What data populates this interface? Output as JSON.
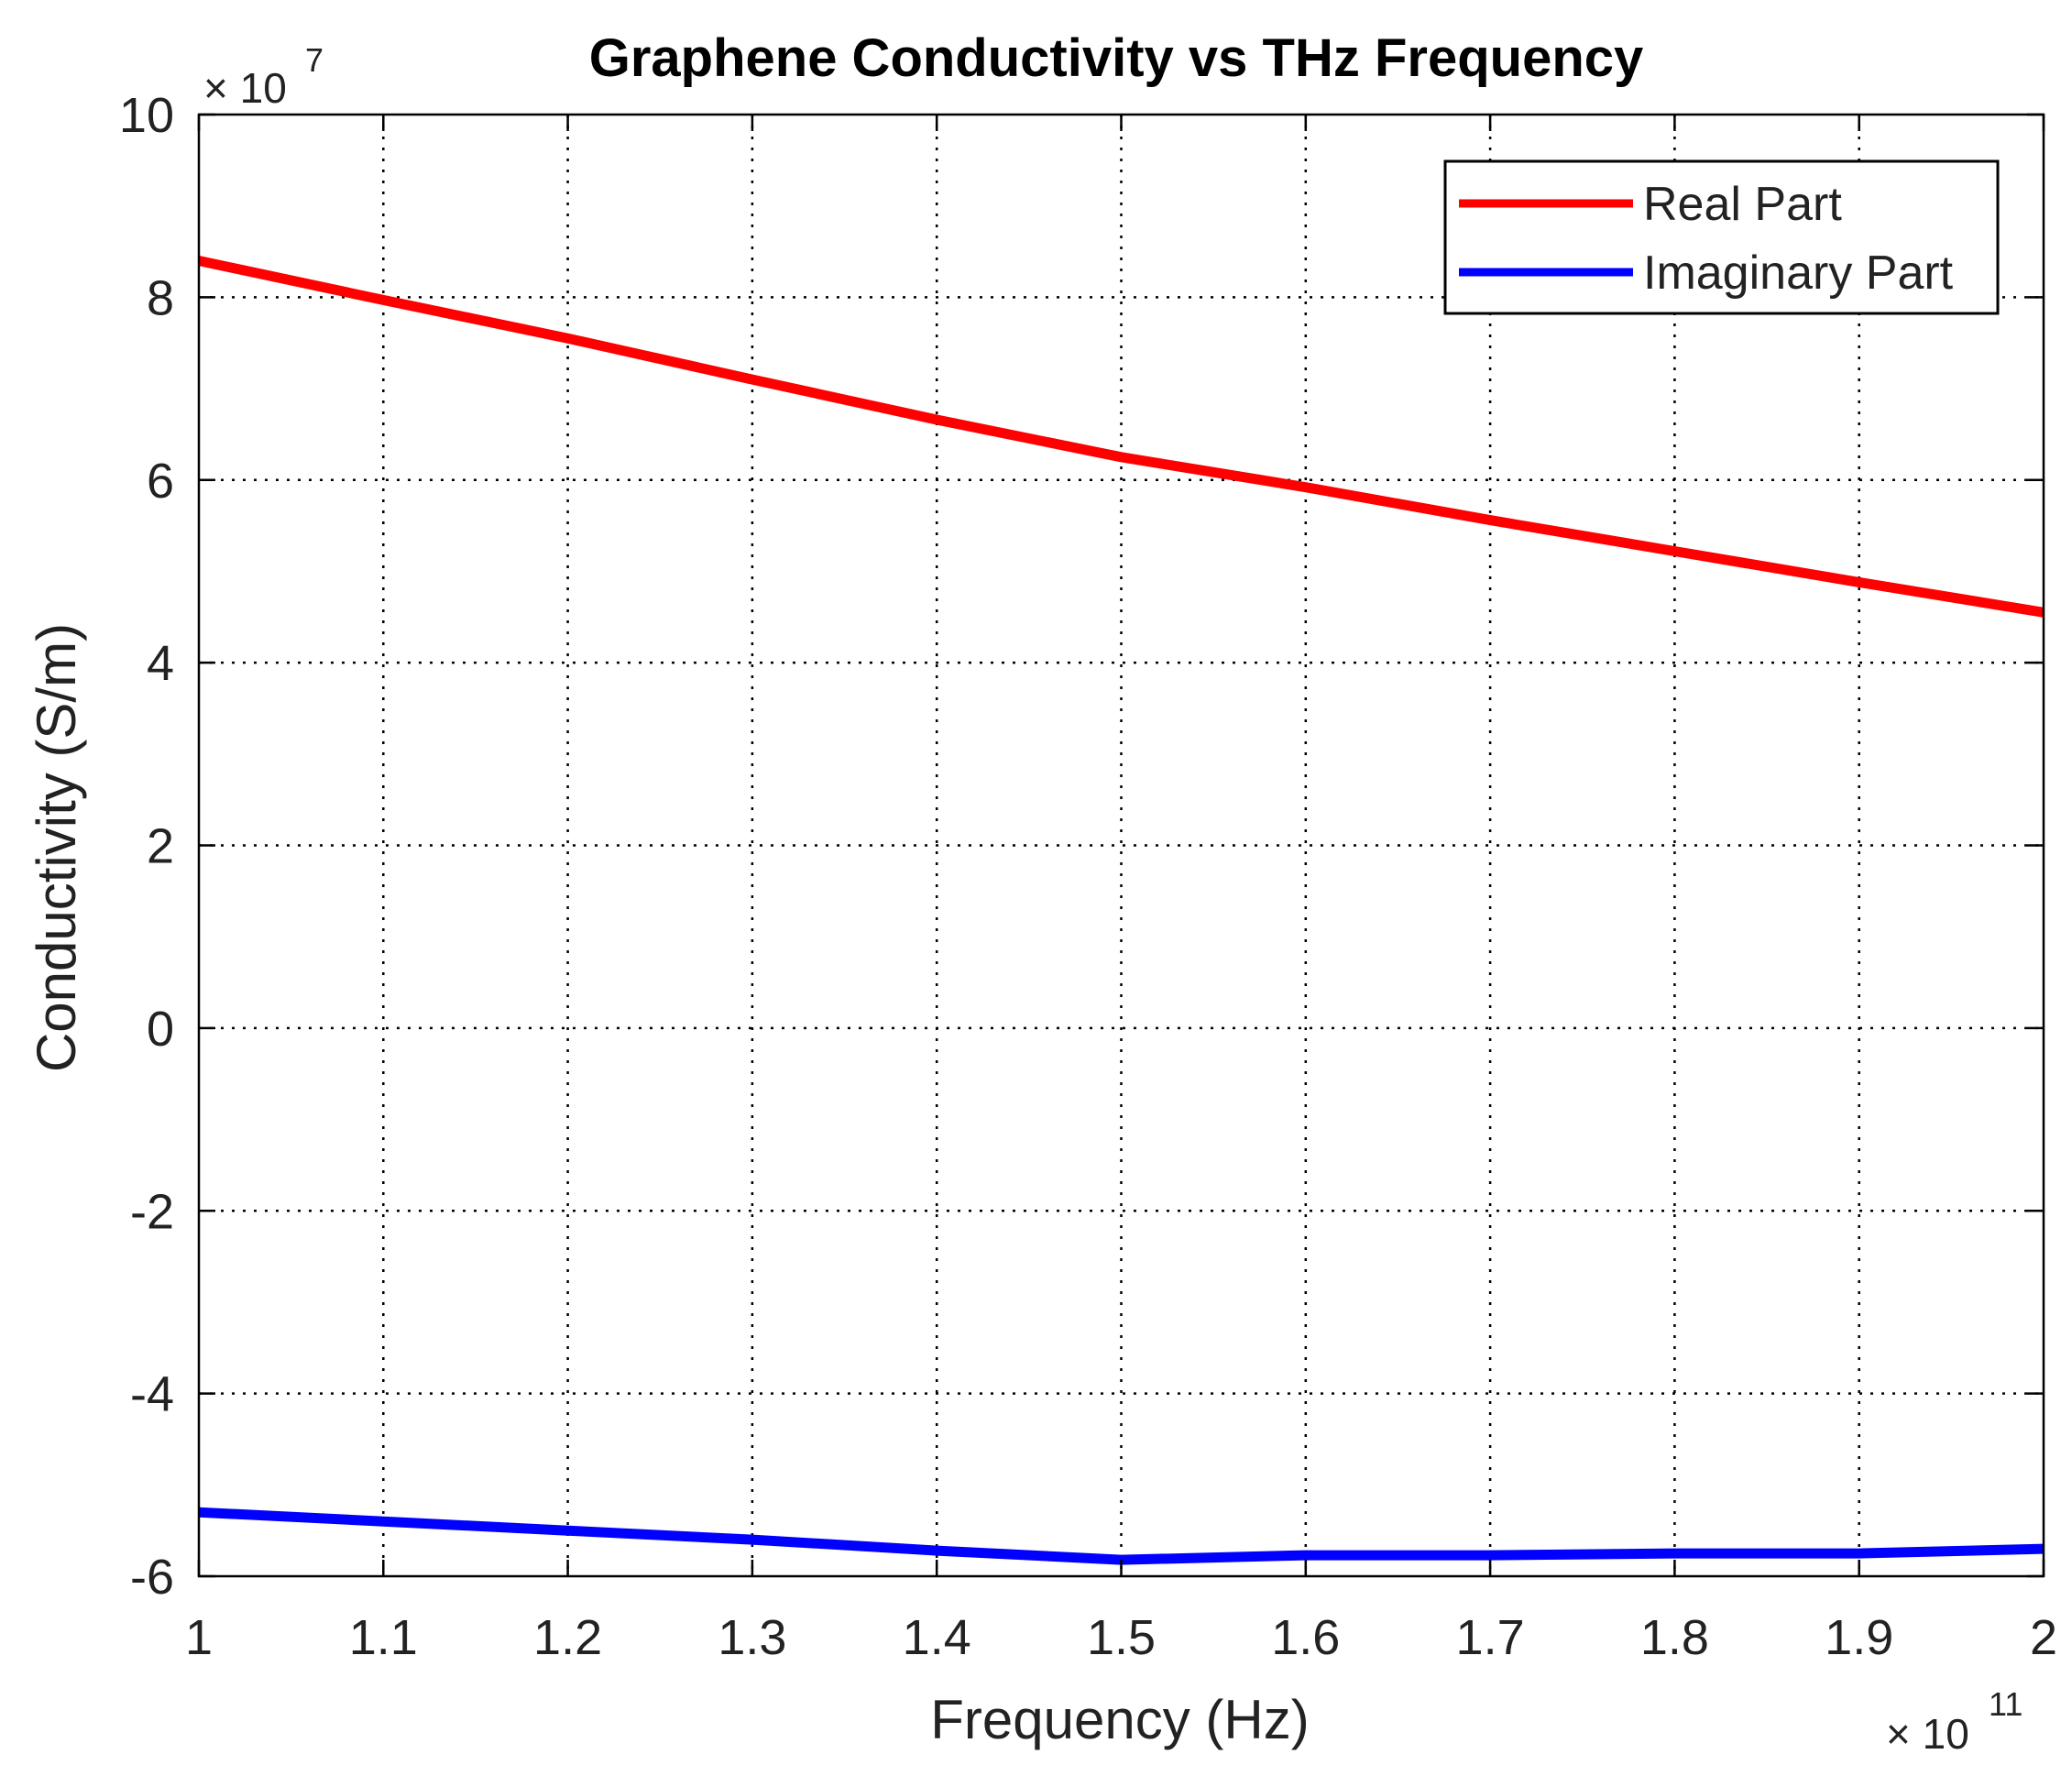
{
  "chart_data": {
    "type": "line",
    "title": "Graphene Conductivity vs THz Frequency",
    "xlabel": "Frequency (Hz)",
    "ylabel": "Conductivity (S/m)",
    "x_multiplier": {
      "prefix": "× 10",
      "exponent": "11"
    },
    "y_multiplier": {
      "prefix": "× 10",
      "exponent": "7"
    },
    "xlim": [
      1,
      2
    ],
    "ylim": [
      -6,
      10
    ],
    "x_ticks": [
      1,
      1.1,
      1.2,
      1.3,
      1.4,
      1.5,
      1.6,
      1.7,
      1.8,
      1.9,
      2
    ],
    "x_tick_labels": [
      "1",
      "1.1",
      "1.2",
      "1.3",
      "1.4",
      "1.5",
      "1.6",
      "1.7",
      "1.8",
      "1.9",
      "2"
    ],
    "y_ticks": [
      -6,
      -4,
      -2,
      0,
      2,
      4,
      6,
      8,
      10
    ],
    "y_tick_labels": [
      "-6",
      "-4",
      "-2",
      "0",
      "2",
      "4",
      "6",
      "8",
      "10"
    ],
    "grid": true,
    "legend_position": "top-right",
    "series": [
      {
        "name": "Real Part",
        "color": "#ff0000",
        "x": [
          1.0,
          1.1,
          1.2,
          1.3,
          1.4,
          1.5,
          1.6,
          1.7,
          1.8,
          1.9,
          2.0
        ],
        "values": [
          8.4,
          7.97,
          7.55,
          7.1,
          6.66,
          6.25,
          5.92,
          5.56,
          5.22,
          4.88,
          4.55
        ]
      },
      {
        "name": "Imaginary Part",
        "color": "#0000ff",
        "x": [
          1.0,
          1.1,
          1.2,
          1.3,
          1.4,
          1.5,
          1.6,
          1.7,
          1.8,
          1.9,
          2.0
        ],
        "values": [
          -5.3,
          -5.4,
          -5.5,
          -5.6,
          -5.72,
          -5.82,
          -5.77,
          -5.77,
          -5.75,
          -5.75,
          -5.7
        ]
      }
    ]
  }
}
